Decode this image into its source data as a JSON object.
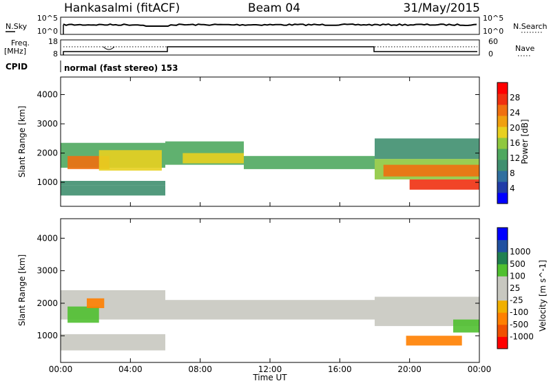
{
  "header": {
    "station": "Hankasalmi (fitACF)",
    "beam": "Beam 04",
    "date": "31/May/2015"
  },
  "panels": {
    "nsky_label": "N.Sky",
    "nsky_top": "10^5",
    "nsky_bottom": "10^0",
    "nsearch_label": "N.Search",
    "nsearch_top": "10^5",
    "nsearch_bottom": "10^0",
    "freq_label_1": "Freq.",
    "freq_label_2": "[MHz]",
    "freq_top": "18",
    "freq_bottom": "8",
    "nave_label": "Nave",
    "nave_top": "60",
    "nave_bottom": "0",
    "cpid_label": "CPID",
    "cpid_text": "normal (fast stereo) 153"
  },
  "colors": {
    "power": [
      "#0000ff",
      "#203ca8",
      "#2f6f9f",
      "#3f8f6f",
      "#4fa85f",
      "#8fc83f",
      "#e8d020",
      "#f0a010",
      "#f07010",
      "#f03010",
      "#ff0000"
    ],
    "velocity": [
      "#ff0000",
      "#f05000",
      "#ff8000",
      "#f0b000",
      "#c8c8c0",
      "#c8c8c0",
      "#50c030",
      "#208050",
      "#2050a0",
      "#0000ff"
    ],
    "line": "#000000"
  },
  "chart_data": [
    {
      "type": "heatmap",
      "name": "power",
      "title": "",
      "xlabel": "Time UT",
      "ylabel": "Slant Range [km]",
      "xlim": [
        "00:00",
        "24:00"
      ],
      "ylim": [
        180,
        4600
      ],
      "x_ticks": [
        "00:00",
        "04:00",
        "08:00",
        "12:00",
        "16:00",
        "20:00",
        "00:00"
      ],
      "y_ticks": [
        1000,
        2000,
        3000,
        4000
      ],
      "colorbar": {
        "label": "Power [dB]",
        "range": [
          0,
          32
        ],
        "ticks": [
          4,
          8,
          12,
          16,
          20,
          24,
          28
        ]
      },
      "regions": [
        {
          "t": [
            0,
            6
          ],
          "r": [
            1500,
            2350
          ],
          "level": 14
        },
        {
          "t": [
            0.4,
            2.8
          ],
          "r": [
            1450,
            1900
          ],
          "level": 26
        },
        {
          "t": [
            2.2,
            5.8
          ],
          "r": [
            1400,
            2100
          ],
          "level": 20
        },
        {
          "t": [
            0,
            6
          ],
          "r": [
            550,
            900
          ],
          "level": 10
        },
        {
          "t": [
            0,
            6
          ],
          "r": [
            900,
            1050
          ],
          "level": 9
        },
        {
          "t": [
            6,
            10.5
          ],
          "r": [
            1600,
            2400
          ],
          "level": 12
        },
        {
          "t": [
            7,
            10.5
          ],
          "r": [
            1650,
            2000
          ],
          "level": 18
        },
        {
          "t": [
            10.5,
            18
          ],
          "r": [
            1450,
            1900
          ],
          "level": 14
        },
        {
          "t": [
            18,
            24
          ],
          "r": [
            1100,
            1800
          ],
          "level": 16
        },
        {
          "t": [
            18.5,
            24
          ],
          "r": [
            1200,
            1600
          ],
          "level": 24
        },
        {
          "t": [
            20,
            24
          ],
          "r": [
            750,
            1100
          ],
          "level": 30
        },
        {
          "t": [
            18,
            24
          ],
          "r": [
            1800,
            2500
          ],
          "level": 10
        }
      ]
    },
    {
      "type": "heatmap",
      "name": "velocity",
      "title": "",
      "xlabel": "Time UT",
      "ylabel": "Slant Range [km]",
      "xlim": [
        "00:00",
        "24:00"
      ],
      "ylim": [
        180,
        4600
      ],
      "x_ticks": [
        "00:00",
        "04:00",
        "08:00",
        "12:00",
        "16:00",
        "20:00",
        "00:00"
      ],
      "y_ticks": [
        1000,
        2000,
        3000,
        4000
      ],
      "colorbar": {
        "label": "Velocity [m s^-1]",
        "ticks": [
          -1000,
          -500,
          -100,
          -25,
          25,
          100,
          500,
          1000
        ]
      },
      "regions": [
        {
          "t": [
            0,
            6
          ],
          "r": [
            1500,
            2400
          ],
          "value": 0
        },
        {
          "t": [
            0.4,
            2.2
          ],
          "r": [
            1400,
            1900
          ],
          "value": 300
        },
        {
          "t": [
            1.5,
            2.5
          ],
          "r": [
            1850,
            2150
          ],
          "value": -200
        },
        {
          "t": [
            0,
            6
          ],
          "r": [
            550,
            1050
          ],
          "value": 0
        },
        {
          "t": [
            6,
            18
          ],
          "r": [
            1500,
            2100
          ],
          "value": 0
        },
        {
          "t": [
            18,
            24
          ],
          "r": [
            1300,
            2200
          ],
          "value": 0
        },
        {
          "t": [
            19.8,
            23
          ],
          "r": [
            700,
            1000
          ],
          "value": -300
        },
        {
          "t": [
            22.5,
            24
          ],
          "r": [
            1100,
            1500
          ],
          "value": 300
        }
      ]
    }
  ]
}
